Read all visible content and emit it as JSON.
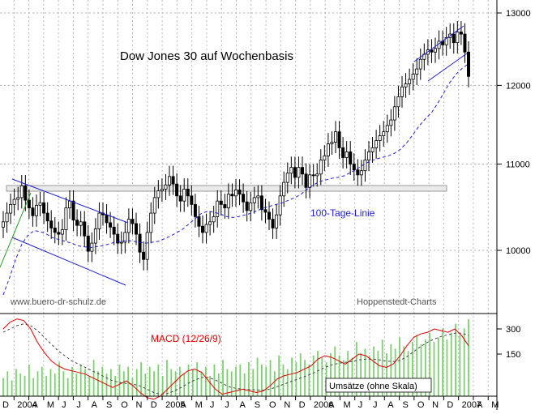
{
  "chart_data": [
    {
      "type": "candlestick",
      "title": "Dow Jones 30 auf Wochenbasis",
      "y_ticks": [
        "13000",
        "12000",
        "11000",
        "10000"
      ],
      "ylim": [
        9400,
        13050
      ],
      "y_scale": "log",
      "grid": true,
      "x_labels": [
        "D",
        "2004",
        "A",
        "M",
        "J",
        "J",
        "A",
        "S",
        "O",
        "N",
        "D",
        "2005",
        "A",
        "M",
        "J",
        "J",
        "A",
        "S",
        "O",
        "N",
        "D",
        "2006",
        "A",
        "M",
        "J",
        "J",
        "A",
        "S",
        "O",
        "N",
        "D",
        "2007",
        "A",
        "M"
      ],
      "annotations": {
        "ma_label": "100-Tage-Linie",
        "source_left": "www.buero-dr-schulz.de",
        "source_right": "Hoppenstedt-Charts"
      },
      "series": [
        {
          "name": "Dow Jones 30 (Woche)",
          "kind": "ohlc_approx",
          "close": [
            10320,
            10420,
            10520,
            10580,
            10600,
            10740,
            10570,
            10480,
            10390,
            10510,
            10540,
            10420,
            10330,
            10250,
            10200,
            10180,
            10230,
            10480,
            10560,
            10340,
            10280,
            10320,
            10160,
            9990,
            10080,
            10240,
            10420,
            10400,
            10310,
            10260,
            10180,
            10080,
            10090,
            10200,
            10350,
            10300,
            10180,
            9980,
            9900,
            10200,
            10420,
            10600,
            10680,
            10700,
            10750,
            10850,
            10760,
            10620,
            10560,
            10700,
            10620,
            10520,
            10380,
            10270,
            10200,
            10290,
            10320,
            10380,
            10560,
            10520,
            10480,
            10640,
            10620,
            10690,
            10640,
            10550,
            10450,
            10540,
            10600,
            10620,
            10460,
            10430,
            10350,
            10250,
            10400,
            10620,
            10780,
            10890,
            10960,
            10840,
            10960,
            10880,
            10720,
            10870,
            10860,
            10880,
            11050,
            11100,
            11250,
            11270,
            11400,
            11200,
            11080,
            11150,
            11000,
            10930,
            10870,
            10920,
            11050,
            11150,
            11200,
            11290,
            11350,
            11400,
            11480,
            11550,
            11720,
            11850,
            11980,
            12020,
            12080,
            12150,
            12220,
            12350,
            12420,
            12480,
            12450,
            12500,
            12600,
            12550,
            12650,
            12700,
            12580,
            12730,
            12700,
            12450,
            12120
          ]
        },
        {
          "name": "100-Tage-Linie",
          "kind": "dashed_line",
          "values": [
            9520,
            9700,
            9900,
            10070,
            10170,
            10220,
            10210,
            10180,
            10140,
            10120,
            10100,
            10080,
            10050,
            10040,
            10030,
            10040,
            10050,
            10070,
            10090,
            10100,
            10110,
            10100,
            10090,
            10080,
            10090,
            10100,
            10130,
            10160,
            10200,
            10240,
            10300,
            10360,
            10420,
            10440,
            10430,
            10410,
            10380,
            10370,
            10380,
            10400,
            10420,
            10450,
            10480,
            10500,
            10520,
            10540,
            10570,
            10600,
            10640,
            10700,
            10750,
            10790,
            10810,
            10830,
            10840,
            10860,
            10900,
            10940,
            10990,
            11030,
            11060,
            11080,
            11100,
            11130,
            11180,
            11260,
            11360,
            11470,
            11560,
            11640,
            11760,
            11900,
            12040,
            12150,
            12230,
            12290
          ]
        }
      ],
      "trend_channels": [
        "2004 downtrend channel",
        "2007 uptrend channel",
        "horizontal resistance band"
      ]
    },
    {
      "type": "bar_line",
      "y_ticks": [
        "300",
        "150"
      ],
      "labels": {
        "macd": "MACD (12/26/9)",
        "volume": "Umsätze (ohne Skala)"
      },
      "series": [
        {
          "name": "MACD (12/26/9)",
          "kind": "line",
          "values": [
            300,
            340,
            360,
            350,
            300,
            220,
            160,
            110,
            80,
            60,
            50,
            40,
            30,
            10,
            -10,
            -30,
            -50,
            -30,
            -10,
            -40,
            -80,
            -110,
            -120,
            -100,
            -60,
            -20,
            20,
            50,
            60,
            40,
            -10,
            -60,
            -90,
            -80,
            -70,
            -60,
            -70,
            -80,
            -70,
            -40,
            0,
            20,
            30,
            40,
            60,
            80,
            120,
            140,
            130,
            110,
            90,
            120,
            150,
            140,
            110,
            80,
            70,
            90,
            140,
            200,
            250,
            270,
            280,
            300,
            290,
            280,
            300,
            260,
            200
          ]
        },
        {
          "name": "Signal",
          "kind": "dashed_line",
          "values": [
            280,
            300,
            320,
            330,
            320,
            290,
            250,
            210,
            170,
            140,
            110,
            90,
            70,
            50,
            30,
            10,
            -10,
            -20,
            -25,
            -30,
            -40,
            -60,
            -80,
            -90,
            -85,
            -70,
            -50,
            -25,
            -5,
            10,
            10,
            -5,
            -25,
            -45,
            -55,
            -60,
            -62,
            -65,
            -66,
            -60,
            -45,
            -30,
            -15,
            0,
            15,
            30,
            50,
            70,
            85,
            95,
            100,
            105,
            115,
            120,
            120,
            115,
            108,
            105,
            112,
            135,
            165,
            195,
            220,
            240,
            255,
            265,
            275,
            275,
            262
          ]
        },
        {
          "name": "Umsätze (ohne Skala)",
          "kind": "bars",
          "values": [
            40,
            55,
            35,
            60,
            50,
            45,
            70,
            40,
            55,
            65,
            45,
            60,
            50,
            75,
            55,
            40,
            65,
            50,
            70,
            60,
            45,
            80,
            55,
            65,
            50,
            60,
            45,
            70,
            55,
            65,
            40,
            60,
            75,
            50,
            65,
            55,
            70,
            45,
            80,
            60,
            55,
            65,
            50,
            70,
            60,
            75,
            55,
            65,
            45,
            70,
            50,
            80,
            60,
            55,
            65,
            70,
            50,
            75,
            60,
            85,
            70,
            65,
            80,
            55,
            90,
            70,
            60,
            85,
            75,
            95,
            80,
            70,
            90,
            100,
            85,
            75,
            95,
            110,
            90,
            80,
            100,
            85,
            120,
            95,
            105,
            90,
            110,
            100,
            125,
            95,
            115,
            105,
            130,
            110,
            100,
            120,
            135,
            115,
            125,
            140,
            120,
            130,
            150,
            125,
            140,
            160,
            135,
            150,
            170
          ]
        }
      ]
    }
  ],
  "colors": {
    "price": "#000000",
    "moving_average": "#1f1fd0",
    "trend_channel": "#1f1fd0",
    "macd": "#e00000",
    "signal": "#444444",
    "volume": "#7fcf72",
    "trend_green": "#2a9a2a",
    "resistance_band": "#eaeaea"
  }
}
